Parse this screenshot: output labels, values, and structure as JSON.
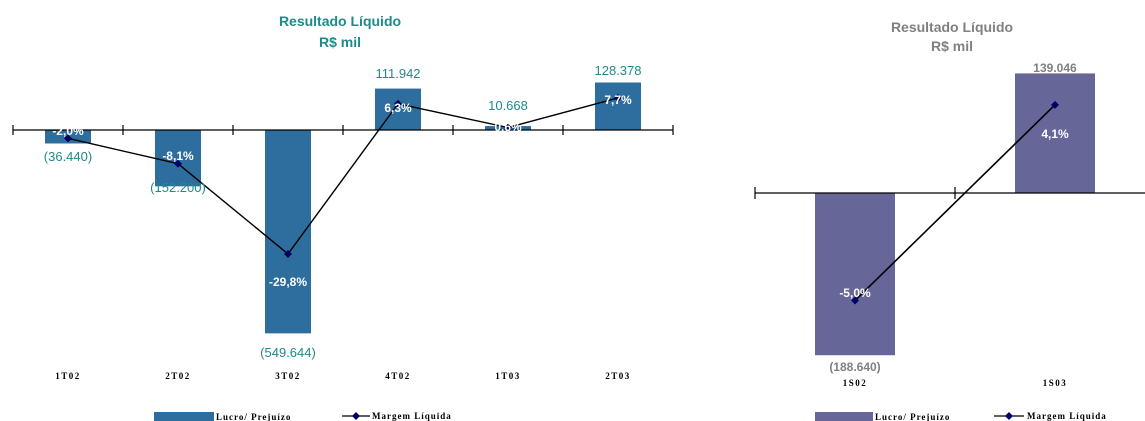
{
  "chart_data": [
    {
      "type": "bar",
      "title": "Resultado Líquido",
      "subtitle": "R$ mil",
      "categories": [
        "1T02",
        "2T02",
        "3T02",
        "4T02",
        "1T03",
        "2T03"
      ],
      "series": [
        {
          "name": "Lucro/ Prejuízo",
          "type": "bar",
          "values": [
            -36440,
            -152200,
            -549644,
            111942,
            10668,
            128378
          ],
          "labels": [
            "(36.440)",
            "(152.200)",
            "(549.644)",
            "111.942",
            "10.668",
            "128.378"
          ],
          "color": "#2E6E9E"
        },
        {
          "name": "Margem Líquida",
          "type": "line",
          "values": [
            -2.0,
            -8.1,
            -29.8,
            6.3,
            0.6,
            7.7
          ],
          "labels": [
            "-2,0%",
            "-8,1%",
            "-29,8%",
            "6,3%",
            "0,6%",
            "7,7%"
          ],
          "color": "#000000"
        }
      ],
      "legend_position": "bottom",
      "grid": false,
      "label_color": "#1F8A8A"
    },
    {
      "type": "bar",
      "title": "Resultado Líquido",
      "subtitle": "R$ mil",
      "categories": [
        "1S02",
        "1S03"
      ],
      "series": [
        {
          "name": "Lucro/ Prejuízo",
          "type": "bar",
          "values": [
            -188640,
            139046
          ],
          "labels": [
            "(188.640)",
            "139.046"
          ],
          "color": "#666699"
        },
        {
          "name": "Margem Líquida",
          "type": "line",
          "values": [
            -5.0,
            4.1
          ],
          "labels": [
            "-5,0%",
            "4,1%"
          ],
          "color": "#000000"
        }
      ],
      "legend_position": "bottom",
      "grid": false,
      "label_color": "#808080"
    }
  ]
}
